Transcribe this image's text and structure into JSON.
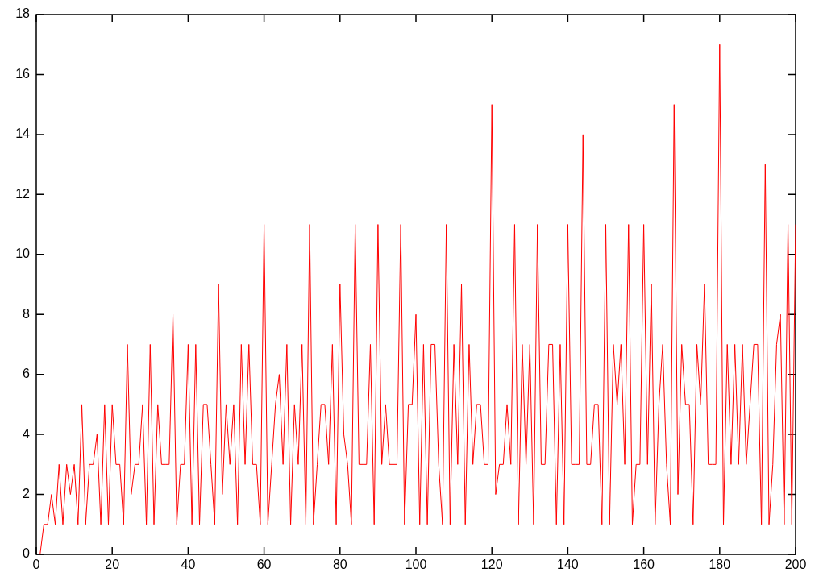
{
  "chart_data": {
    "type": "line",
    "marker": "none",
    "line_style": "solid",
    "grid": false,
    "legend": false,
    "xlim": [
      0,
      200
    ],
    "xticks": [
      0,
      20,
      40,
      60,
      80,
      100,
      120,
      140,
      160,
      180,
      200
    ],
    "ylim": [
      0,
      18
    ],
    "yticks": [
      0,
      2,
      4,
      6,
      8,
      10,
      12,
      14,
      16,
      18
    ],
    "x": [
      1,
      2,
      3,
      4,
      5,
      6,
      7,
      8,
      9,
      10,
      11,
      12,
      13,
      14,
      15,
      16,
      17,
      18,
      19,
      20,
      21,
      22,
      23,
      24,
      25,
      26,
      27,
      28,
      29,
      30,
      31,
      32,
      33,
      34,
      35,
      36,
      37,
      38,
      39,
      40,
      41,
      42,
      43,
      44,
      45,
      46,
      47,
      48,
      49,
      50,
      51,
      52,
      53,
      54,
      55,
      56,
      57,
      58,
      59,
      60,
      61,
      62,
      63,
      64,
      65,
      66,
      67,
      68,
      69,
      70,
      71,
      72,
      73,
      74,
      75,
      76,
      77,
      78,
      79,
      80,
      81,
      82,
      83,
      84,
      85,
      86,
      87,
      88,
      89,
      90,
      91,
      92,
      93,
      94,
      95,
      96,
      97,
      98,
      99,
      100,
      101,
      102,
      103,
      104,
      105,
      106,
      107,
      108,
      109,
      110,
      111,
      112,
      113,
      114,
      115,
      116,
      117,
      118,
      119,
      120,
      121,
      122,
      123,
      124,
      125,
      126,
      127,
      128,
      129,
      130,
      131,
      132,
      133,
      134,
      135,
      136,
      137,
      138,
      139,
      140,
      141,
      142,
      143,
      144,
      145,
      146,
      147,
      148,
      149,
      150,
      151,
      152,
      153,
      154,
      155,
      156,
      157,
      158,
      159,
      160,
      161,
      162,
      163,
      164,
      165,
      166,
      167,
      168,
      169,
      170,
      171,
      172,
      173,
      174,
      175,
      176,
      177,
      178,
      179,
      180,
      181,
      182,
      183,
      184,
      185,
      186,
      187,
      188,
      189,
      190,
      191,
      192,
      193,
      194,
      195,
      196,
      197,
      198,
      199,
      200
    ],
    "series": [
      {
        "color": "#ff0000",
        "values": [
          0,
          1,
          1,
          2,
          1,
          3,
          1,
          3,
          2,
          3,
          1,
          5,
          1,
          3,
          3,
          4,
          1,
          5,
          1,
          5,
          3,
          3,
          1,
          7,
          2,
          3,
          3,
          5,
          1,
          7,
          1,
          5,
          3,
          3,
          3,
          8,
          1,
          3,
          3,
          7,
          1,
          7,
          1,
          5,
          5,
          3,
          1,
          9,
          2,
          5,
          3,
          5,
          1,
          7,
          3,
          7,
          3,
          3,
          1,
          11,
          1,
          3,
          5,
          6,
          3,
          7,
          1,
          5,
          3,
          7,
          1,
          11,
          1,
          3,
          5,
          5,
          3,
          7,
          1,
          9,
          4,
          3,
          1,
          11,
          3,
          3,
          3,
          7,
          1,
          11,
          3,
          5,
          3,
          3,
          3,
          11,
          1,
          5,
          5,
          8,
          1,
          7,
          1,
          7,
          7,
          3,
          1,
          11,
          1,
          7,
          3,
          9,
          1,
          7,
          3,
          5,
          5,
          3,
          3,
          15,
          2,
          3,
          3,
          5,
          3,
          11,
          1,
          7,
          3,
          7,
          1,
          11,
          3,
          3,
          7,
          7,
          1,
          7,
          1,
          11,
          3,
          3,
          3,
          14,
          3,
          3,
          5,
          5,
          1,
          11,
          1,
          7,
          5,
          7,
          3,
          11,
          1,
          3,
          3,
          11,
          3,
          9,
          1,
          5,
          7,
          3,
          1,
          15,
          2,
          7,
          5,
          5,
          1,
          7,
          5,
          9,
          3,
          3,
          3,
          17,
          1,
          7,
          3,
          7,
          3,
          7,
          3,
          5,
          7,
          7,
          1,
          13,
          1,
          3,
          7,
          8,
          1,
          11,
          1,
          11
        ]
      }
    ]
  }
}
